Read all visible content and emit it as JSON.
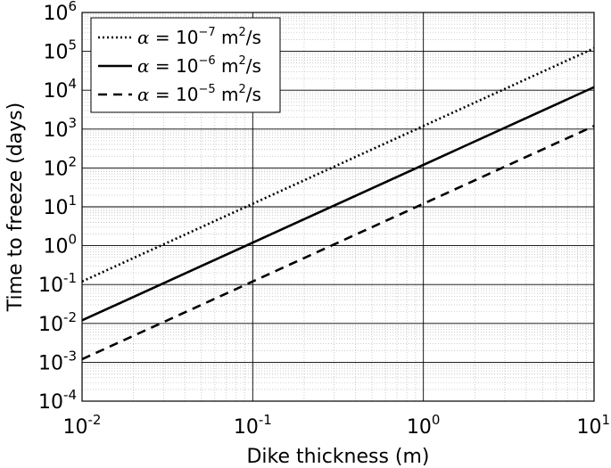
{
  "chart_data": {
    "type": "line",
    "xlabel": "Dike thickness (m)",
    "ylabel": "Time to freeze (days)",
    "xscale": "log",
    "yscale": "log",
    "xlim": [
      0.01,
      10
    ],
    "ylim": [
      0.0001,
      1000000
    ],
    "grid": "on (major and minor)",
    "legend_position": "top-left",
    "x_ticks": [
      {
        "base": "10",
        "exp": "-2",
        "value": 0.01
      },
      {
        "base": "10",
        "exp": "-1",
        "value": 0.1
      },
      {
        "base": "10",
        "exp": "0",
        "value": 1
      },
      {
        "base": "10",
        "exp": "1",
        "value": 10
      }
    ],
    "y_ticks": [
      {
        "base": "10",
        "exp": "-4",
        "value": 0.0001
      },
      {
        "base": "10",
        "exp": "-3",
        "value": 0.001
      },
      {
        "base": "10",
        "exp": "-2",
        "value": 0.01
      },
      {
        "base": "10",
        "exp": "-1",
        "value": 0.1
      },
      {
        "base": "10",
        "exp": "0",
        "value": 1
      },
      {
        "base": "10",
        "exp": "1",
        "value": 10
      },
      {
        "base": "10",
        "exp": "2",
        "value": 100
      },
      {
        "base": "10",
        "exp": "3",
        "value": 1000
      },
      {
        "base": "10",
        "exp": "4",
        "value": 10000
      },
      {
        "base": "10",
        "exp": "5",
        "value": 100000
      },
      {
        "base": "10",
        "exp": "6",
        "value": 1000000
      }
    ],
    "series": [
      {
        "legend": {
          "alpha": "α",
          "eq": " = 10",
          "exp": "−7",
          "unit_a": " m",
          "unit_exp": "2",
          "unit_b": "/s"
        },
        "style": "dotted",
        "x": [
          0.01,
          10
        ],
        "y": [
          0.12,
          120000
        ]
      },
      {
        "legend": {
          "alpha": "α",
          "eq": " = 10",
          "exp": "−6",
          "unit_a": " m",
          "unit_exp": "2",
          "unit_b": "/s"
        },
        "style": "solid",
        "x": [
          0.01,
          10
        ],
        "y": [
          0.012,
          12000
        ]
      },
      {
        "legend": {
          "alpha": "α",
          "eq": " = 10",
          "exp": "−5",
          "unit_a": " m",
          "unit_exp": "2",
          "unit_b": "/s"
        },
        "style": "dashed",
        "x": [
          0.01,
          10
        ],
        "y": [
          0.0012,
          1200
        ]
      }
    ],
    "line_color": "#000000",
    "grid_color": "#000000",
    "minor_grid_color": "#b8b8b8"
  }
}
